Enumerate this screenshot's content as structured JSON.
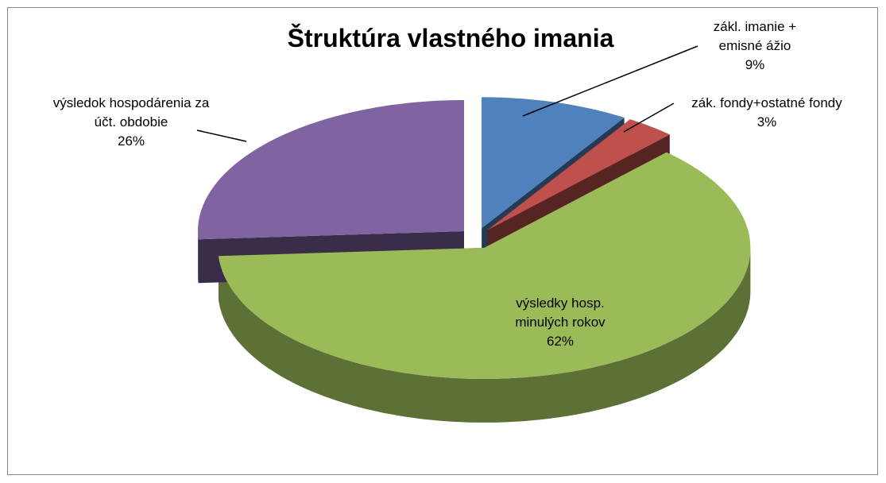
{
  "chart_data": {
    "type": "pie3d",
    "title": "Štruktúra vlastného imania",
    "categories": [
      "zákl. imanie + emisné ážio",
      "zák. fondy+ostatné fondy",
      "výsledky hosp. minulých rokov",
      "výsledok hospodárenia za účt. obdobie"
    ],
    "values": [
      9,
      3,
      62,
      26
    ],
    "value_labels": [
      "9%",
      "3%",
      "62%",
      "26%"
    ],
    "colors": [
      "#4f81bd",
      "#c0504d",
      "#9bbb59",
      "#8064a2"
    ]
  }
}
